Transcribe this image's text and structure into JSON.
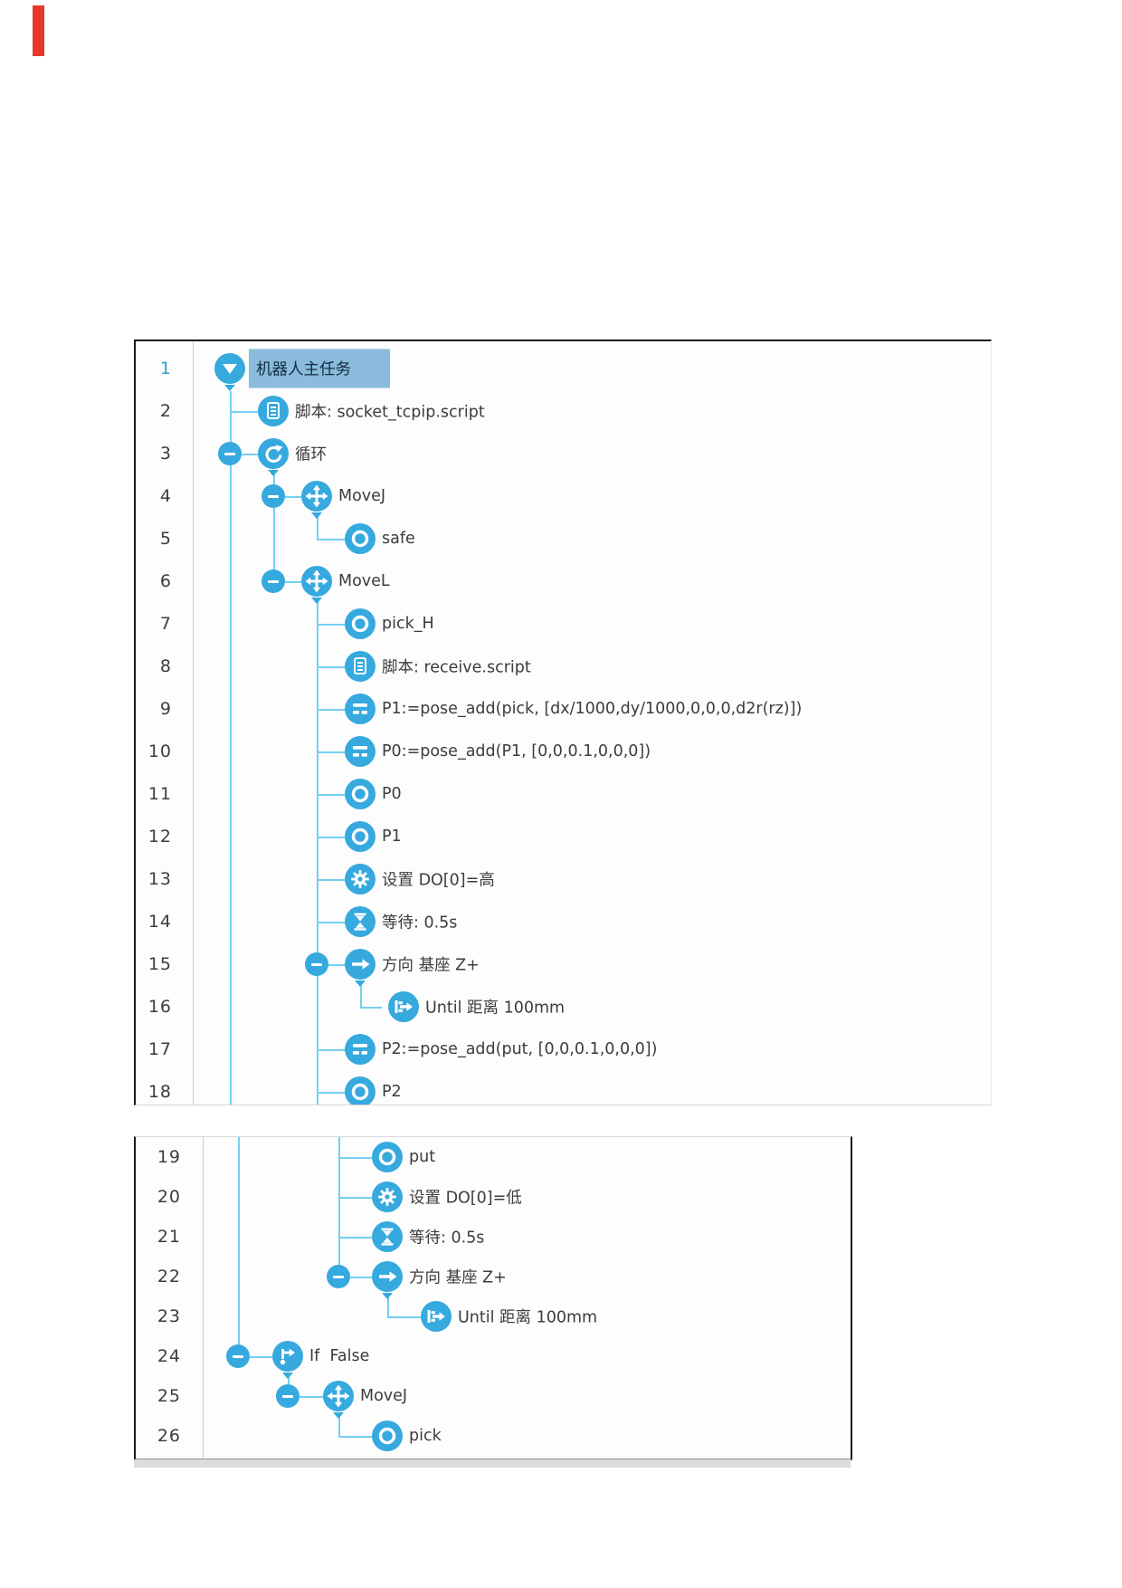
{
  "colors": {
    "accent_blue": "#36a9de",
    "connector_blue": "#74d0f0",
    "selection_blue": "#8abbdc",
    "number_color": "#3d3d3d",
    "selected_number_color": "#2f9ec6",
    "text_color": "#3c3c3c"
  },
  "program_tree": {
    "panels": [
      {
        "id": "top",
        "rows": [
          {
            "num": "1",
            "depth": 0,
            "icon": "expand-triangle",
            "label": "机器人主任务",
            "collapse": false,
            "chevron": true,
            "selected": true
          },
          {
            "num": "2",
            "depth": 1,
            "icon": "script",
            "label": "脚本: socket_tcpip.script",
            "collapse": false,
            "chevron": false,
            "selected": false
          },
          {
            "num": "3",
            "depth": 1,
            "icon": "loop",
            "label": "循环",
            "collapse": true,
            "chevron": true,
            "selected": false
          },
          {
            "num": "4",
            "depth": 2,
            "icon": "move",
            "label": "MoveJ",
            "collapse": true,
            "chevron": true,
            "selected": false
          },
          {
            "num": "5",
            "depth": 3,
            "icon": "waypoint",
            "label": "safe",
            "collapse": false,
            "chevron": false,
            "selected": false
          },
          {
            "num": "6",
            "depth": 2,
            "icon": "move",
            "label": "MoveL",
            "collapse": true,
            "chevron": true,
            "selected": false
          },
          {
            "num": "7",
            "depth": 3,
            "icon": "waypoint",
            "label": "pick_H",
            "collapse": false,
            "chevron": false,
            "selected": false
          },
          {
            "num": "8",
            "depth": 3,
            "icon": "script",
            "label": "脚本: receive.script",
            "collapse": false,
            "chevron": false,
            "selected": false
          },
          {
            "num": "9",
            "depth": 3,
            "icon": "assign",
            "label": "P1:=pose_add(pick, [dx/1000,dy/1000,0,0,0,d2r(rz)])",
            "collapse": false,
            "chevron": false,
            "selected": false
          },
          {
            "num": "10",
            "depth": 3,
            "icon": "assign",
            "label": "P0:=pose_add(P1, [0,0,0.1,0,0,0])",
            "collapse": false,
            "chevron": false,
            "selected": false
          },
          {
            "num": "11",
            "depth": 3,
            "icon": "waypoint",
            "label": "P0",
            "collapse": false,
            "chevron": false,
            "selected": false
          },
          {
            "num": "12",
            "depth": 3,
            "icon": "waypoint",
            "label": "P1",
            "collapse": false,
            "chevron": false,
            "selected": false
          },
          {
            "num": "13",
            "depth": 3,
            "icon": "gear",
            "label": "设置 DO[0]=高",
            "collapse": false,
            "chevron": false,
            "selected": false
          },
          {
            "num": "14",
            "depth": 3,
            "icon": "hourglass",
            "label": "等待: 0.5s",
            "collapse": false,
            "chevron": false,
            "selected": false
          },
          {
            "num": "15",
            "depth": 3,
            "icon": "direction-arrow",
            "label": "方向 基座 Z+",
            "collapse": true,
            "chevron": true,
            "selected": false
          },
          {
            "num": "16",
            "depth": 4,
            "icon": "until",
            "label": "Until 距离 100mm",
            "collapse": false,
            "chevron": false,
            "selected": false
          },
          {
            "num": "17",
            "depth": 3,
            "icon": "assign",
            "label": "P2:=pose_add(put, [0,0,0.1,0,0,0])",
            "collapse": false,
            "chevron": false,
            "selected": false
          },
          {
            "num": "18",
            "depth": 3,
            "icon": "waypoint",
            "label": "P2",
            "collapse": false,
            "chevron": false,
            "selected": false
          }
        ]
      },
      {
        "id": "bottom",
        "rows": [
          {
            "num": "19",
            "depth": 3,
            "icon": "waypoint",
            "label": "put",
            "collapse": false,
            "chevron": false,
            "selected": false
          },
          {
            "num": "20",
            "depth": 3,
            "icon": "gear",
            "label": "设置 DO[0]=低",
            "collapse": false,
            "chevron": false,
            "selected": false
          },
          {
            "num": "21",
            "depth": 3,
            "icon": "hourglass",
            "label": "等待: 0.5s",
            "collapse": false,
            "chevron": false,
            "selected": false
          },
          {
            "num": "22",
            "depth": 3,
            "icon": "direction-arrow",
            "label": "方向 基座 Z+",
            "collapse": true,
            "chevron": true,
            "selected": false
          },
          {
            "num": "23",
            "depth": 4,
            "icon": "until",
            "label": "Until 距离 100mm",
            "collapse": false,
            "chevron": false,
            "selected": false
          },
          {
            "num": "24",
            "depth": 1,
            "icon": "if-branch",
            "label": "If  False",
            "collapse": true,
            "chevron": true,
            "selected": false
          },
          {
            "num": "25",
            "depth": 2,
            "icon": "move",
            "label": "MoveJ",
            "collapse": true,
            "chevron": true,
            "selected": false
          },
          {
            "num": "26",
            "depth": 3,
            "icon": "waypoint",
            "label": "pick",
            "collapse": false,
            "chevron": false,
            "selected": false
          }
        ]
      }
    ]
  }
}
